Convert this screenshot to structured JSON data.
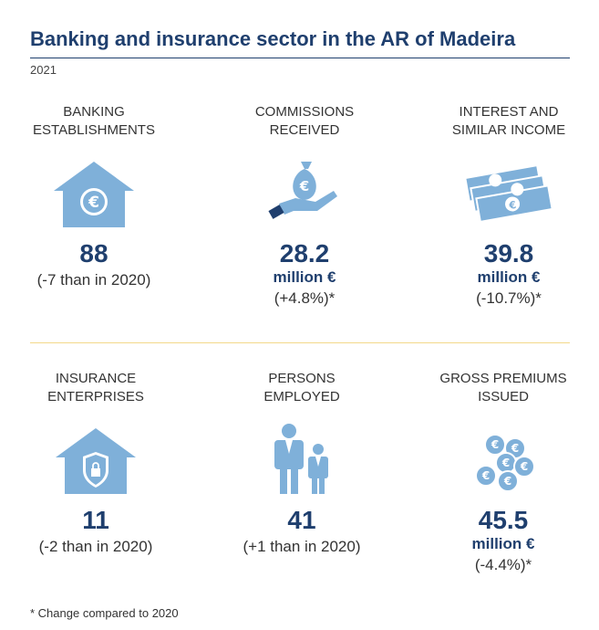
{
  "header": {
    "title": "Banking and insurance sector in the AR of Madeira",
    "year": "2021"
  },
  "indicators": [
    {
      "label_1": "BANKING",
      "label_2": "ESTABLISHMENTS",
      "value": "88",
      "unit": "",
      "note": "(-7 than in 2020)",
      "icon": "house-euro-icon"
    },
    {
      "label_1": "COMMISSIONS",
      "label_2": "RECEIVED",
      "value": "28.2",
      "unit": "million €",
      "note": "(+4.8%)*",
      "icon": "hand-moneybag-icon"
    },
    {
      "label_1": "INTEREST AND",
      "label_2": "SIMILAR INCOME",
      "value": "39.8",
      "unit": "million €",
      "note": "(-10.7%)*",
      "icon": "banknotes-icon"
    },
    {
      "label_1": "INSURANCE",
      "label_2": "ENTERPRISES",
      "value": "11",
      "unit": "",
      "note": "(-2 than in 2020)",
      "icon": "house-shield-icon"
    },
    {
      "label_1": "PERSONS",
      "label_2": "EMPLOYED",
      "value": "41",
      "unit": "",
      "note": "(+1 than in 2020)",
      "icon": "people-icon"
    },
    {
      "label_1": "GROSS PREMIUMS",
      "label_2": "ISSUED",
      "value": "45.5",
      "unit": "million €",
      "note": "(-4.4%)*",
      "icon": "euro-coins-icon"
    }
  ],
  "footnote": "* Change compared to 2020",
  "colors": {
    "title": "#1f3f6e",
    "icon": "#7fb0d9",
    "separator": "#f3d98a"
  }
}
